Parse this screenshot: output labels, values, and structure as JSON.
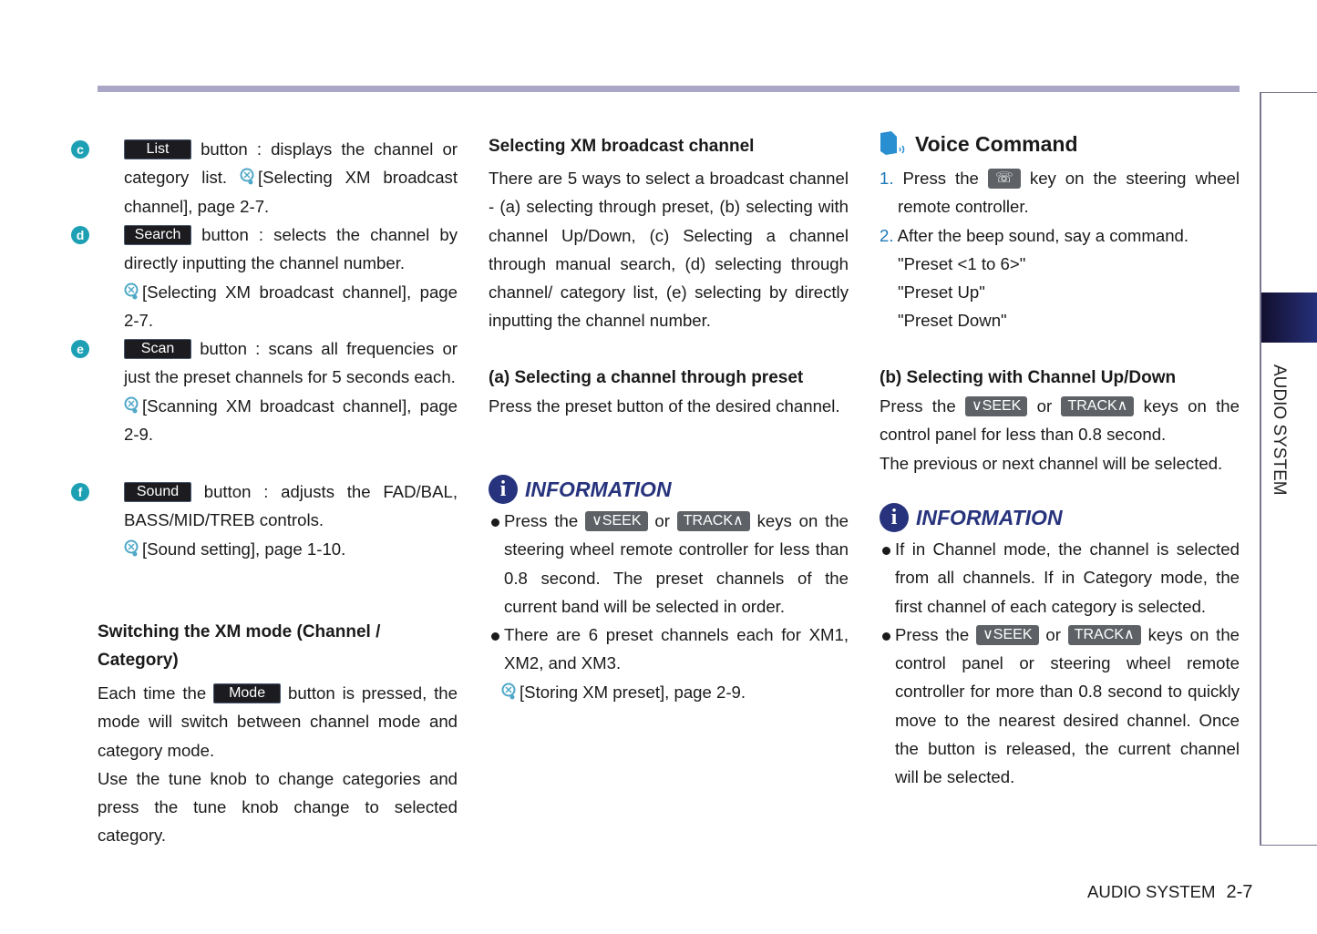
{
  "side_tab": "AUDIO SYSTEM",
  "footer": {
    "section": "AUDIO SYSTEM",
    "page": "2-7"
  },
  "left": {
    "items": [
      {
        "letter": "c",
        "button": "List",
        "text": "button : displays the channel or category list.",
        "ref": "[Selecting XM broadcast channel], page 2-7."
      },
      {
        "letter": "d",
        "button": "Search",
        "text": "button : selects the channel by directly inputting the channel number.",
        "ref": "[Selecting XM broadcast channel], page 2-7."
      },
      {
        "letter": "e",
        "button": "Scan",
        "text": "button : scans all frequencies or just the preset channels for 5 seconds each.",
        "ref": "[Scanning XM broadcast channel], page 2-9."
      },
      {
        "letter": "f",
        "button": "Sound",
        "text": "button : adjusts the FAD/BAL, BASS/MID/TREB controls.",
        "ref": "[Sound setting], page 1-10."
      }
    ],
    "switch_heading": "Switching the XM mode (Channel / Category)",
    "switch_pre": "Each time the",
    "switch_button": "Mode",
    "switch_post": "button is pressed, the mode will switch between channel mode and category mode.",
    "switch_para2": "Use the tune knob to change categories and press the tune knob change to selected category."
  },
  "middle": {
    "heading": "Selecting XM broadcast channel",
    "para": "There are 5 ways to select a broadcast channel - (a) selecting through preset, (b) selecting with channel Up/Down, (c) Selecting a channel through manual search, (d) selecting through channel/ category list, (e) selecting by directly inputting the channel number.",
    "sub_heading": "(a) Selecting a channel through preset",
    "sub_para": "Press the preset button of the desired channel.",
    "info_title": "INFORMATION",
    "bullet1_pre": "Press the",
    "key1": "∨SEEK",
    "or": "or",
    "key2": "TRACK∧",
    "bullet1_post": "keys on the steering wheel remote controller for less than 0.8 second. The preset channels of the current band will be selected in order.",
    "bullet2": "There are 6 preset channels each for XM1, XM2, and XM3.",
    "ref": "[Storing XM preset], page 2-9."
  },
  "right": {
    "voice_title": "Voice Command",
    "step1_num": "1.",
    "step1_pre": "Press the",
    "step1_post": "key on the steering wheel remote controller.",
    "step2_num": "2.",
    "step2": "After the beep sound, say a command.",
    "commands": [
      "\"Preset <1 to 6>\"",
      "\"Preset Up\"",
      "\"Preset Down\""
    ],
    "sub_heading": "(b) Selecting with Channel Up/Down",
    "sub_pre": "Press the",
    "key1": "∨SEEK",
    "or": "or",
    "key2": "TRACK∧",
    "sub_post": "keys on the control panel for less than 0.8 second.",
    "sub_para2": "The previous or next channel will be selected.",
    "info_title": "INFORMATION",
    "bullet1": "If in Channel mode, the channel is selected from all channels. If in Category mode, the first channel of each category is selected.",
    "bullet2_pre": "Press the",
    "bullet2_post": "keys on the control panel or steering wheel remote controller for more than 0.8 second to quickly move to the nearest desired channel. Once the button is released, the current channel will be selected."
  },
  "colors": {
    "accent": "#27337d",
    "teal": "#1ea0b4",
    "bar": "#a9a6c6",
    "key": "#5e6266"
  }
}
